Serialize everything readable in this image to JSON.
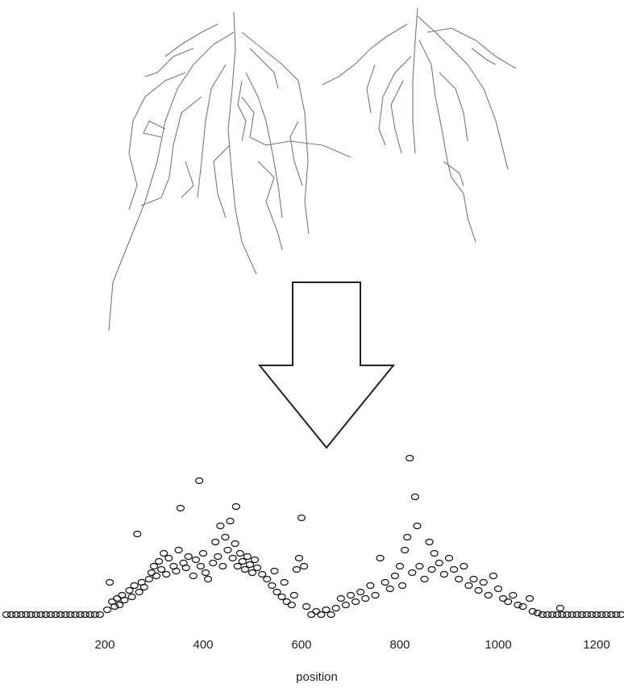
{
  "chart_data": {
    "type": "scatter",
    "x_label": "position",
    "x": [
      0,
      10,
      20,
      30,
      40,
      50,
      60,
      70,
      80,
      90,
      100,
      110,
      120,
      130,
      140,
      150,
      160,
      170,
      180,
      190,
      205,
      210,
      215,
      220,
      225,
      230,
      235,
      240,
      250,
      255,
      260,
      266,
      270,
      275,
      280,
      290,
      295,
      300,
      305,
      310,
      315,
      320,
      325,
      330,
      340,
      345,
      350,
      354,
      360,
      365,
      370,
      380,
      385,
      392,
      395,
      400,
      405,
      410,
      420,
      425,
      430,
      435,
      440,
      445,
      450,
      455,
      460,
      465,
      467,
      470,
      475,
      480,
      485,
      490,
      495,
      500,
      505,
      510,
      520,
      530,
      540,
      545,
      550,
      560,
      565,
      570,
      580,
      585,
      590,
      595,
      600,
      605,
      610,
      620,
      630,
      640,
      650,
      660,
      670,
      680,
      690,
      700,
      710,
      720,
      730,
      740,
      750,
      760,
      770,
      780,
      790,
      800,
      805,
      810,
      815,
      820,
      825,
      831,
      835,
      840,
      850,
      860,
      865,
      870,
      880,
      890,
      900,
      910,
      920,
      930,
      940,
      950,
      960,
      970,
      980,
      990,
      1000,
      1010,
      1020,
      1030,
      1040,
      1050,
      1064,
      1070,
      1080,
      1090,
      1100,
      1110,
      1120,
      1126,
      1130,
      1140,
      1150,
      1160,
      1170,
      1180,
      1190,
      1200,
      1210,
      1220,
      1230,
      1240,
      1250
    ],
    "values": [
      0,
      0,
      0,
      0,
      0,
      0,
      0,
      0,
      0,
      0,
      0,
      0,
      0,
      0,
      0,
      0,
      0,
      0,
      0,
      0,
      3,
      20,
      8,
      5,
      10,
      6,
      12,
      9,
      15,
      11,
      18,
      50,
      14,
      20,
      17,
      22,
      26,
      30,
      24,
      33,
      28,
      38,
      25,
      35,
      30,
      27,
      40,
      66,
      32,
      29,
      36,
      24,
      34,
      83,
      30,
      38,
      26,
      22,
      32,
      45,
      36,
      55,
      30,
      48,
      40,
      58,
      35,
      44,
      67,
      30,
      38,
      33,
      28,
      36,
      31,
      26,
      34,
      29,
      25,
      22,
      18,
      27,
      14,
      11,
      20,
      8,
      6,
      12,
      28,
      35,
      60,
      30,
      5,
      0,
      2,
      0,
      3,
      0,
      4,
      10,
      6,
      12,
      8,
      14,
      10,
      18,
      12,
      35,
      20,
      16,
      24,
      30,
      18,
      40,
      48,
      97,
      26,
      73,
      55,
      30,
      22,
      45,
      28,
      38,
      32,
      25,
      35,
      28,
      22,
      30,
      18,
      22,
      15,
      20,
      12,
      24,
      16,
      10,
      8,
      12,
      6,
      5,
      10,
      2,
      1,
      0,
      0,
      0,
      0,
      4,
      0,
      0,
      0,
      0,
      0,
      0,
      0,
      0,
      0,
      0,
      0,
      0,
      0
    ],
    "color": "#111111",
    "xlim": [
      0,
      1250
    ],
    "xticks": [
      200,
      400,
      600,
      800,
      1000,
      1200
    ],
    "ylim": [
      0,
      100
    ]
  }
}
